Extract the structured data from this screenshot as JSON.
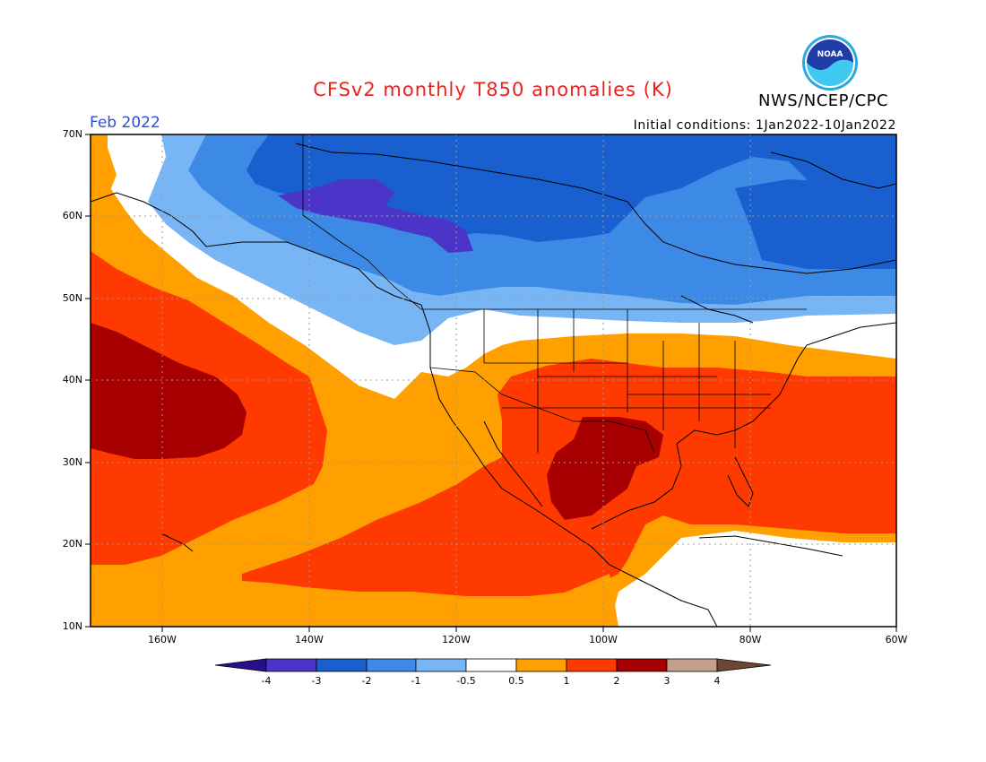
{
  "title": "CFSv2 monthly T850 anomalies (K)",
  "org": "NWS/NCEP/CPC",
  "logo_text": "NOAA",
  "month": "Feb 2022",
  "initial_conditions": "Initial conditions: 1Jan2022-10Jan2022",
  "lat_labels": [
    "70N",
    "60N",
    "50N",
    "40N",
    "30N",
    "20N",
    "10N"
  ],
  "lon_labels": [
    "160W",
    "140W",
    "120W",
    "100W",
    "80W",
    "60W"
  ],
  "colorbar": {
    "labels": [
      "-4",
      "-3",
      "-2",
      "-1",
      "-0.5",
      "0.5",
      "1",
      "2",
      "3",
      "4"
    ],
    "colors": [
      "#2a0f8c",
      "#4a35c8",
      "#1a5fd0",
      "#3c8ae6",
      "#78b5f4",
      "#ffffff",
      "#ff9f00",
      "#ff3a00",
      "#a80000",
      "#c4a08a",
      "#6e4634"
    ]
  }
}
